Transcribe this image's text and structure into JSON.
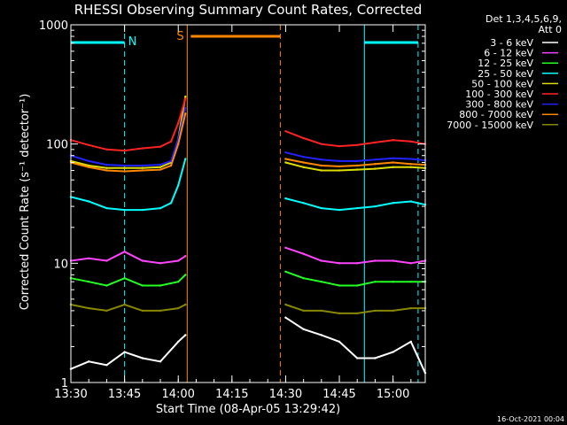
{
  "chart_data": {
    "type": "line",
    "title": "RHESSI Observing Summary Count Rates, Corrected",
    "xlabel": "Start Time (08-Apr-05 13:29:42)",
    "ylabel": "Corrected Count Rate (s⁻¹ detector⁻¹)",
    "y_scale": "log",
    "ylim": [
      1,
      1000
    ],
    "xlim_minutes_after_1330": [
      0,
      99
    ],
    "x_ticks": [
      {
        "label": "13:30",
        "t": 0
      },
      {
        "label": "13:45",
        "t": 15
      },
      {
        "label": "14:00",
        "t": 30
      },
      {
        "label": "14:15",
        "t": 45
      },
      {
        "label": "14:30",
        "t": 60
      },
      {
        "label": "14:45",
        "t": 75
      },
      {
        "label": "15:00",
        "t": 90
      }
    ],
    "y_ticks": [
      {
        "label": "1",
        "v": 1
      },
      {
        "label": "10",
        "v": 10
      },
      {
        "label": "100",
        "v": 100
      },
      {
        "label": "1000",
        "v": 1000
      }
    ],
    "legend_header": [
      "Det 1,3,4,5,6,9,",
      "Att 0"
    ],
    "legend_position": "top-right",
    "series": [
      {
        "name": "3 - 6 keV",
        "color": "#ffffff",
        "x": [
          0,
          5,
          10,
          15,
          20,
          25,
          30,
          32,
          60,
          65,
          70,
          75,
          80,
          85,
          90,
          95,
          99
        ],
        "y": [
          1.3,
          1.5,
          1.4,
          1.8,
          1.6,
          1.5,
          2.2,
          2.5,
          3.5,
          2.8,
          2.5,
          2.2,
          1.6,
          1.6,
          1.8,
          2.2,
          1.2
        ]
      },
      {
        "name": "6 - 12 keV",
        "color": "#ff44ff",
        "x": [
          0,
          5,
          10,
          15,
          20,
          25,
          30,
          32,
          60,
          65,
          70,
          75,
          80,
          85,
          90,
          95,
          99
        ],
        "y": [
          10.5,
          11,
          10.5,
          12.5,
          10.5,
          10,
          10.5,
          11.5,
          13.5,
          12,
          10.5,
          10,
          10,
          10.5,
          10.5,
          10,
          10.5
        ]
      },
      {
        "name": "12 - 25 keV",
        "color": "#22ff22",
        "x": [
          0,
          5,
          10,
          15,
          20,
          25,
          30,
          32,
          60,
          65,
          70,
          75,
          80,
          85,
          90,
          95,
          99
        ],
        "y": [
          7.5,
          7,
          6.5,
          7.5,
          6.5,
          6.5,
          7,
          8,
          8.5,
          7.5,
          7,
          6.5,
          6.5,
          7,
          7,
          7,
          7
        ]
      },
      {
        "name": "25 - 50 keV",
        "color": "#00ffff",
        "x": [
          0,
          5,
          10,
          15,
          20,
          25,
          28,
          30,
          32,
          60,
          65,
          70,
          75,
          80,
          85,
          90,
          95,
          99
        ],
        "y": [
          36,
          33,
          29,
          28,
          28,
          29,
          32,
          45,
          75,
          35,
          32,
          29,
          28,
          29,
          30,
          32,
          33,
          31
        ]
      },
      {
        "name": "50 - 100 keV",
        "color": "#dddd00",
        "x": [
          0,
          5,
          10,
          15,
          20,
          25,
          28,
          30,
          32,
          60,
          65,
          70,
          75,
          80,
          85,
          90,
          95,
          99
        ],
        "y": [
          72,
          66,
          63,
          63,
          63,
          64,
          70,
          110,
          250,
          70,
          64,
          60,
          60,
          61,
          62,
          64,
          64,
          63
        ]
      },
      {
        "name": "100 - 300 keV",
        "color": "#ff2222",
        "x": [
          0,
          5,
          10,
          15,
          20,
          25,
          28,
          30,
          32,
          60,
          65,
          70,
          75,
          80,
          85,
          90,
          95,
          99
        ],
        "y": [
          108,
          98,
          90,
          88,
          92,
          95,
          105,
          150,
          240,
          128,
          112,
          100,
          96,
          98,
          103,
          108,
          105,
          100
        ]
      },
      {
        "name": "300 - 800 keV",
        "color": "#2222ff",
        "x": [
          0,
          5,
          10,
          15,
          20,
          25,
          28,
          30,
          32,
          60,
          65,
          70,
          75,
          80,
          85,
          90,
          95,
          99
        ],
        "y": [
          80,
          72,
          67,
          66,
          66,
          67,
          72,
          110,
          200,
          85,
          78,
          74,
          72,
          72,
          74,
          76,
          75,
          73
        ]
      },
      {
        "name": "800 - 7000 keV",
        "color": "#ff8800",
        "x": [
          0,
          5,
          10,
          15,
          20,
          25,
          28,
          30,
          32,
          60,
          65,
          70,
          75,
          80,
          85,
          90,
          95,
          99
        ],
        "y": [
          70,
          64,
          60,
          59,
          60,
          61,
          66,
          100,
          180,
          75,
          70,
          66,
          65,
          66,
          68,
          70,
          68,
          67
        ]
      },
      {
        "name": "7000 - 15000 keV",
        "color": "#888800",
        "x": [
          0,
          5,
          10,
          15,
          20,
          25,
          30,
          32,
          60,
          65,
          70,
          75,
          80,
          85,
          90,
          95,
          99
        ],
        "y": [
          4.5,
          4.2,
          4,
          4.5,
          4,
          4,
          4.2,
          4.5,
          4.5,
          4,
          4,
          3.8,
          3.8,
          4,
          4,
          4.2,
          4.2
        ]
      }
    ],
    "annotations": [
      {
        "label": "N",
        "color": "#00ffff"
      },
      {
        "label": "S",
        "color": "#ff8800"
      }
    ],
    "timestamp": "16-Oct-2021 00:04"
  }
}
